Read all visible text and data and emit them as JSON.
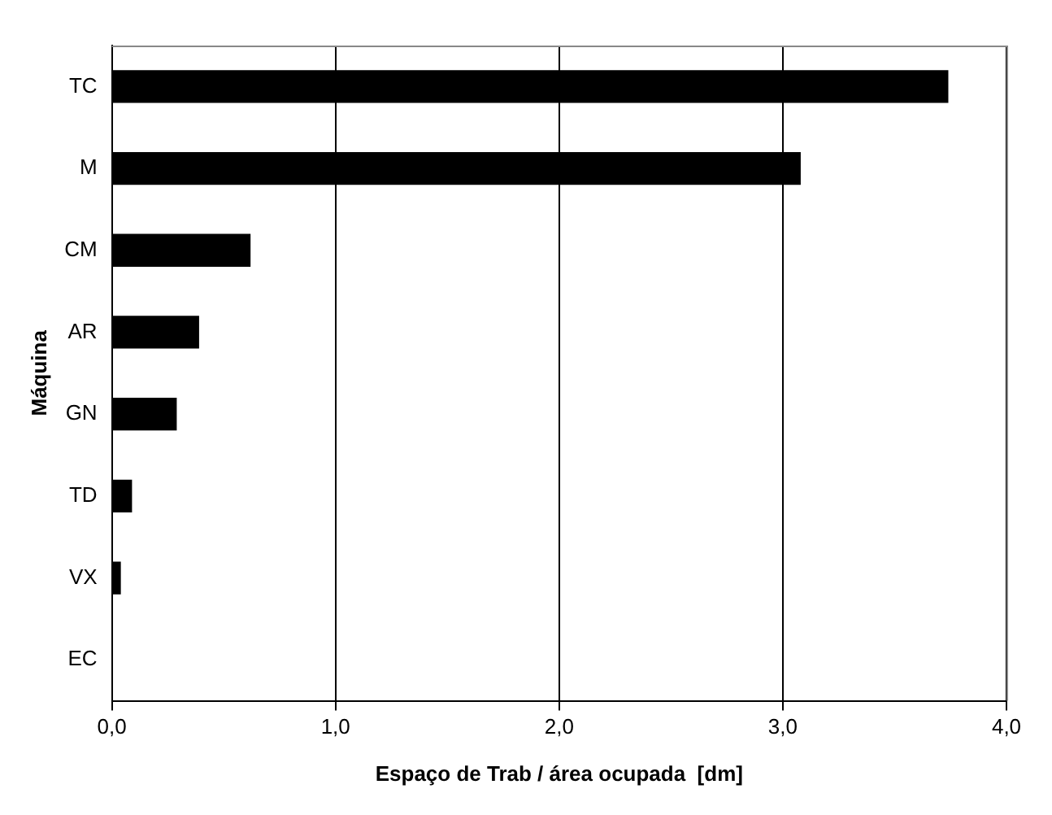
{
  "chart_data": {
    "type": "bar",
    "orientation": "horizontal",
    "xlabel": "Espaço de Trab / área ocupada  [dm]",
    "ylabel": "Máquina",
    "categories": [
      "TC",
      "M",
      "CM",
      "AR",
      "GN",
      "TD",
      "VX",
      "EC"
    ],
    "values": [
      3.74,
      3.08,
      0.62,
      0.39,
      0.29,
      0.09,
      0.04,
      0
    ],
    "color": "#000000",
    "xlim": [
      0,
      4
    ],
    "xticks": [
      {
        "value": 0,
        "label": "0,0"
      },
      {
        "value": 1,
        "label": "1,0"
      },
      {
        "value": 2,
        "label": "2,0"
      },
      {
        "value": 3,
        "label": "3,0"
      },
      {
        "value": 4,
        "label": "4,0"
      }
    ],
    "grid": "x",
    "legend": false
  }
}
